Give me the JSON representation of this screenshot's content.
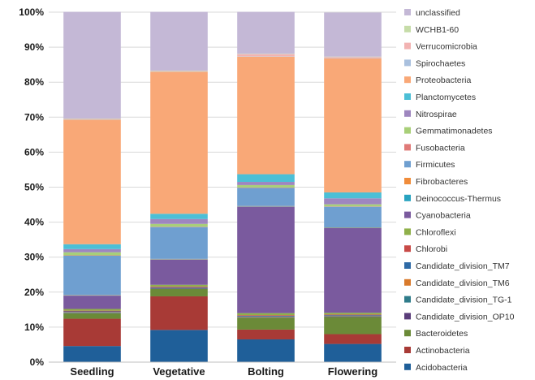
{
  "chart_data": {
    "type": "bar",
    "stacked": true,
    "title": "",
    "xlabel": "",
    "ylabel": "",
    "ylim": [
      0,
      100
    ],
    "y_ticks": [
      "0%",
      "10%",
      "20%",
      "30%",
      "40%",
      "50%",
      "60%",
      "70%",
      "80%",
      "90%",
      "100%"
    ],
    "grid": true,
    "legend_position": "right",
    "categories": [
      "Seedling",
      "Vegetative",
      "Bolting",
      "Flowering"
    ],
    "series": [
      {
        "name": "Acidobacteria",
        "color": "#1f5f99",
        "values": [
          4.6,
          9.2,
          6.5,
          5.2
        ]
      },
      {
        "name": "Actinobacteria",
        "color": "#a83a36",
        "values": [
          7.8,
          9.6,
          2.8,
          2.8
        ]
      },
      {
        "name": "Bacteroidetes",
        "color": "#6b8a38",
        "values": [
          1.6,
          2.1,
          3.4,
          4.9
        ]
      },
      {
        "name": "Candidate_division_OP10",
        "color": "#5a3d7a",
        "values": [
          0.1,
          0.1,
          0.1,
          0.1
        ]
      },
      {
        "name": "Candidate_division_TG-1",
        "color": "#2f7c8a",
        "values": [
          0.1,
          0.1,
          0.1,
          0.1
        ]
      },
      {
        "name": "Candidate_division_TM6",
        "color": "#d97a2b",
        "values": [
          0.1,
          0.1,
          0.1,
          0.1
        ]
      },
      {
        "name": "Candidate_division_TM7",
        "color": "#2e6aa6",
        "values": [
          0.2,
          0.2,
          0.2,
          0.2
        ]
      },
      {
        "name": "Chlorobi",
        "color": "#c84a47",
        "values": [
          0.2,
          0.2,
          0.2,
          0.2
        ]
      },
      {
        "name": "Chloroflexi",
        "color": "#8fb04a",
        "values": [
          0.5,
          0.5,
          0.6,
          0.5
        ]
      },
      {
        "name": "Cyanobacteria",
        "color": "#7a5a9e",
        "values": [
          3.8,
          7.2,
          30.4,
          24.2
        ]
      },
      {
        "name": "Deinococcus-Thermus",
        "color": "#28a3c0",
        "values": [
          0.1,
          0.1,
          0.1,
          0.1
        ]
      },
      {
        "name": "Fibrobacteres",
        "color": "#f08c3a",
        "values": [
          0.1,
          0.1,
          0.1,
          0.1
        ]
      },
      {
        "name": "Firmicutes",
        "color": "#6f9fd0",
        "values": [
          11.2,
          9.1,
          5.2,
          5.9
        ]
      },
      {
        "name": "Fusobacteria",
        "color": "#e07a78",
        "values": [
          0.1,
          0.1,
          0.1,
          0.1
        ]
      },
      {
        "name": "Gemmatimonadetes",
        "color": "#a8cf78",
        "values": [
          0.9,
          0.8,
          0.7,
          0.6
        ]
      },
      {
        "name": "Nitrospirae",
        "color": "#9e86bf",
        "values": [
          0.9,
          1.4,
          0.9,
          1.7
        ]
      },
      {
        "name": "Planctomycetes",
        "color": "#4cbfd6",
        "values": [
          1.4,
          1.5,
          2.2,
          1.7
        ]
      },
      {
        "name": "Proteobacteria",
        "color": "#f9a877",
        "values": [
          35.6,
          40.6,
          33.6,
          38.3
        ]
      },
      {
        "name": "Spirochaetes",
        "color": "#a9c0de",
        "values": [
          0.1,
          0.1,
          0.1,
          0.1
        ]
      },
      {
        "name": "Verrucomicrobia",
        "color": "#f2b3b2",
        "values": [
          0.1,
          0.1,
          0.6,
          0.3
        ]
      },
      {
        "name": "WCHB1-60",
        "color": "#c6dca8",
        "values": [
          0.1,
          0.1,
          0.1,
          0.1
        ]
      },
      {
        "name": "unclassified",
        "color": "#c4b8d6",
        "values": [
          30.5,
          16.8,
          12.0,
          12.6
        ]
      }
    ]
  }
}
